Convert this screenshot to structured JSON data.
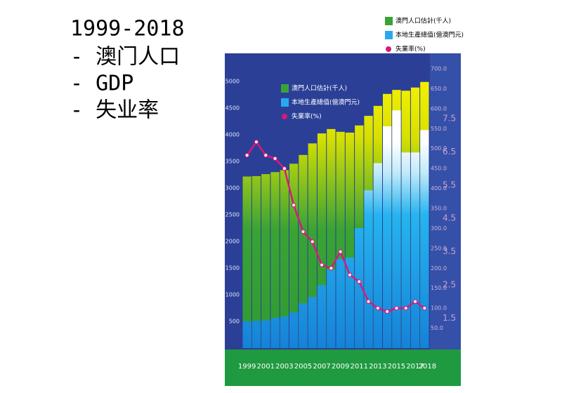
{
  "slide_text": [
    "1999-2018",
    "- 澳门人口",
    "- GDP",
    "- 失业率"
  ],
  "chart_data": {
    "type": "bar",
    "categories": [
      "1999",
      null,
      "2001",
      null,
      "2003",
      null,
      "2005",
      null,
      "2007",
      null,
      "2009",
      null,
      "2011",
      null,
      "2013",
      null,
      "2015",
      null,
      "2017",
      "2018"
    ],
    "series": [
      {
        "name": "澳門人口估計(千人)",
        "color": "#3aa335",
        "axis": "y2",
        "values": [
          430,
          431,
          436,
          441,
          446,
          462,
          484,
          513,
          538,
          549,
          542,
          540,
          558,
          582,
          607,
          637,
          647,
          645,
          653,
          667
        ]
      },
      {
        "name": "本地生產總值(億澳門元)",
        "color": "#1e9be8",
        "values": [
          500,
          510,
          520,
          565,
          590,
          670,
          840,
          960,
          1180,
          1470,
          1670,
          1700,
          2250,
          2960,
          3470,
          4160,
          4460,
          3670,
          3670,
          4090
        ]
      },
      {
        "name": "失業率(%)",
        "color": "#d6197f",
        "axis": "y3",
        "values": [
          6.4,
          6.8,
          6.4,
          6.3,
          6.0,
          4.9,
          4.1,
          3.8,
          3.1,
          3.0,
          3.5,
          2.8,
          2.6,
          2.0,
          1.8,
          1.7,
          1.8,
          1.8,
          2.0,
          1.8
        ]
      }
    ],
    "ylim": [
      0,
      5240
    ],
    "yticks": [
      500,
      1000,
      1500,
      2000,
      2500,
      3000,
      3500,
      4000,
      4500,
      5000
    ],
    "y2lim": [
      0,
      700
    ],
    "y2ticks": [
      {
        "value": 50,
        "label": "50.0"
      },
      {
        "value": 100,
        "label": "100.0"
      },
      {
        "value": 150,
        "label": "150.0"
      },
      {
        "value": 200,
        "label": "200.0"
      },
      {
        "value": 250,
        "label": "250.0"
      },
      {
        "value": 300,
        "label": "300.0"
      },
      {
        "value": 350,
        "label": "350.0"
      },
      {
        "value": 400,
        "label": "400.0"
      },
      {
        "value": 450,
        "label": "450.0"
      },
      {
        "value": 500,
        "label": "500.0"
      },
      {
        "value": 550,
        "label": "550.0"
      },
      {
        "value": 600,
        "label": "600.0"
      },
      {
        "value": 650,
        "label": "650.0"
      },
      {
        "value": 700,
        "label": "700.0"
      }
    ],
    "y3lim": [
      0.6,
      9.0
    ],
    "y3ticks": [
      1.5,
      2.5,
      3.5,
      4.5,
      5.5,
      6.5,
      7.5
    ]
  }
}
